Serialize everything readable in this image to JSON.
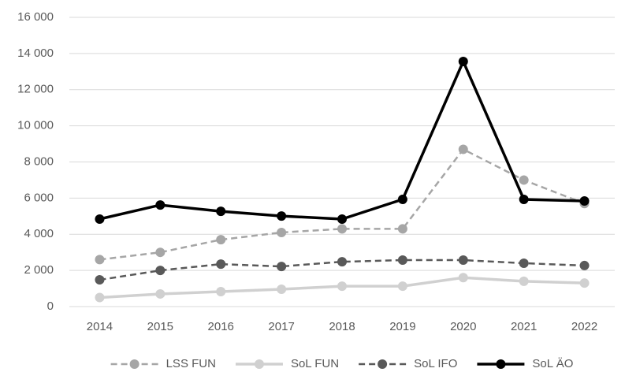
{
  "chart_data": {
    "type": "line",
    "categories": [
      "2014",
      "2015",
      "2016",
      "2017",
      "2018",
      "2019",
      "2020",
      "2021",
      "2022"
    ],
    "series": [
      {
        "name": "LSS FUN",
        "color": "#a6a6a6",
        "line_style": "dashed",
        "values": [
          2600,
          3000,
          3700,
          4100,
          4300,
          4300,
          8700,
          7000,
          5700
        ]
      },
      {
        "name": "SoL FUN",
        "color": "#d0d0d0",
        "line_style": "solid",
        "values": [
          500,
          700,
          830,
          960,
          1130,
          1130,
          1600,
          1400,
          1300
        ]
      },
      {
        "name": "SoL IFO",
        "color": "#595959",
        "line_style": "dashed",
        "values": [
          1480,
          2000,
          2350,
          2220,
          2480,
          2570,
          2570,
          2400,
          2270
        ]
      },
      {
        "name": "SoL ÄO",
        "color": "#000000",
        "line_style": "solid",
        "values": [
          4840,
          5620,
          5270,
          5010,
          4840,
          5930,
          13560,
          5930,
          5840
        ]
      }
    ],
    "ylim": [
      0,
      16000
    ],
    "yticks": [
      {
        "value": 0,
        "label": "0"
      },
      {
        "value": 2000,
        "label": "2 000"
      },
      {
        "value": 4000,
        "label": "4 000"
      },
      {
        "value": 6000,
        "label": "6 000"
      },
      {
        "value": 8000,
        "label": "8 000"
      },
      {
        "value": 10000,
        "label": "10 000"
      },
      {
        "value": 12000,
        "label": "12 000"
      },
      {
        "value": 14000,
        "label": "14 000"
      },
      {
        "value": 16000,
        "label": "16 000"
      }
    ],
    "grid": true,
    "legend": "bottom"
  }
}
